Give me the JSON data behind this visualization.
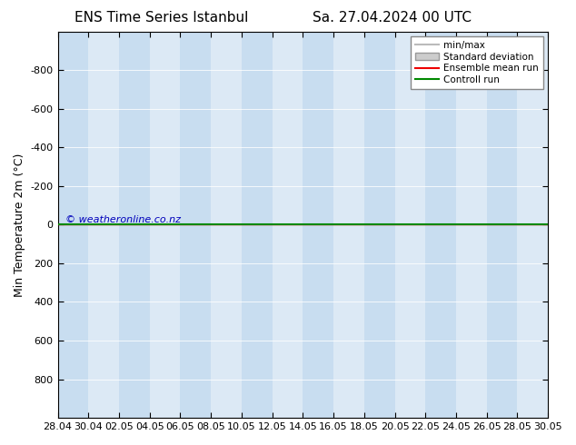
{
  "title_left": "ENS Time Series Istanbul",
  "title_right": "Sa. 27.04.2024 00 UTC",
  "ylabel": "Min Temperature 2m (°C)",
  "ylim": [
    -1000,
    1000
  ],
  "yticks": [
    -800,
    -600,
    -400,
    -200,
    0,
    200,
    400,
    600,
    800
  ],
  "xlabels": [
    "28.04",
    "30.04",
    "02.05",
    "04.05",
    "06.05",
    "08.05",
    "10.05",
    "12.05",
    "14.05",
    "16.05",
    "18.05",
    "20.05",
    "22.05",
    "24.05",
    "26.05",
    "28.05",
    "30.05"
  ],
  "x_values": [
    0,
    2,
    4,
    6,
    8,
    10,
    12,
    14,
    16,
    18,
    20,
    22,
    24,
    26,
    28,
    30,
    32
  ],
  "bg_color": "#ffffff",
  "plot_bg": "#dce9f5",
  "band_light": "#c8ddf0",
  "band_dark": "#dce9f5",
  "watermark": "© weatheronline.co.nz",
  "watermark_color": "#0000bb",
  "legend_labels": [
    "min/max",
    "Standard deviation",
    "Ensemble mean run",
    "Controll run"
  ],
  "minmax_color": "#bbbbbb",
  "std_color": "#cccccc",
  "ensemble_color": "#ee0000",
  "control_color": "#008800",
  "title_fontsize": 11,
  "tick_fontsize": 8,
  "ylabel_fontsize": 9
}
